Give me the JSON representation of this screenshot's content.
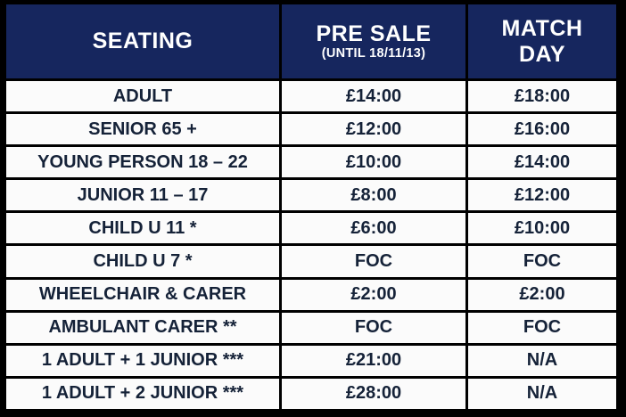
{
  "table": {
    "colors": {
      "header_bg": "#16265E",
      "header_text": "#FFFFFF",
      "cell_bg": "#FBFBFB",
      "cell_text": "#152238",
      "grid": "#000000"
    },
    "header": {
      "seating_label": "SEATING",
      "pre_sale_label": "PRE SALE",
      "pre_sale_sublabel": "(UNTIL 18/11/13)",
      "match_day_label": "MATCH DAY"
    },
    "rows": [
      {
        "seating": "ADULT",
        "pre_sale": "£14:00",
        "match_day": "£18:00"
      },
      {
        "seating": "SENIOR 65 +",
        "pre_sale": "£12:00",
        "match_day": "£16:00"
      },
      {
        "seating": "YOUNG PERSON 18 – 22",
        "pre_sale": "£10:00",
        "match_day": "£14:00"
      },
      {
        "seating": "JUNIOR 11 – 17",
        "pre_sale": "£8:00",
        "match_day": "£12:00"
      },
      {
        "seating": "CHILD U 11 *",
        "pre_sale": "£6:00",
        "match_day": "£10:00"
      },
      {
        "seating": "CHILD U 7 *",
        "pre_sale": "FOC",
        "match_day": "FOC"
      },
      {
        "seating": "WHEELCHAIR & CARER",
        "pre_sale": "£2:00",
        "match_day": "£2:00"
      },
      {
        "seating": "AMBULANT CARER **",
        "pre_sale": "FOC",
        "match_day": "FOC"
      },
      {
        "seating": "1 ADULT + 1 JUNIOR ***",
        "pre_sale": "£21:00",
        "match_day": "N/A"
      },
      {
        "seating": "1 ADULT + 2 JUNIOR ***",
        "pre_sale": "£28:00",
        "match_day": "N/A"
      }
    ]
  }
}
